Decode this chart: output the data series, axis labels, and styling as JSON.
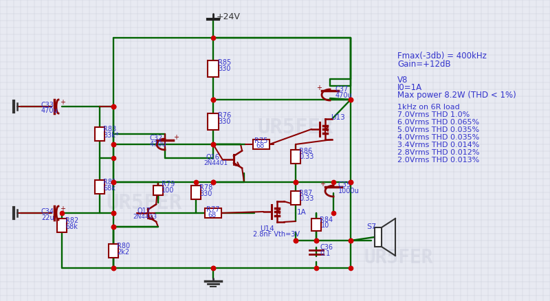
{
  "bg_color": "#e8eaf2",
  "grid_color": "#c8ccd8",
  "wire_color": "#006400",
  "comp_color": "#8b0000",
  "text_color": "#3333cc",
  "wm_color": "#c0c4d4",
  "info_lines": [
    [
      "Fmax(-3db) = 400kHz",
      578,
      75,
      8.5
    ],
    [
      "Gain=+12dB",
      578,
      87,
      8.5
    ],
    [
      "V8",
      578,
      110,
      8.5
    ],
    [
      "I0=1A",
      578,
      121,
      8.5
    ],
    [
      "Max power 8.2W (THD < 1%)",
      578,
      132,
      8.5
    ],
    [
      "1kHz on 6R load",
      578,
      151,
      8.0
    ],
    [
      "7.0Vrms THD 1.0%",
      578,
      162,
      8.0
    ],
    [
      "6.0Vrms THD 0.065%",
      578,
      173,
      8.0
    ],
    [
      "5.0Vrms THD 0.035%",
      578,
      184,
      8.0
    ],
    [
      "4.0Vrms THD 0.035%",
      578,
      195,
      8.0
    ],
    [
      "3.4Vrms THD 0.014%",
      578,
      206,
      8.0
    ],
    [
      "2.8Vrms THD 0.012%",
      578,
      217,
      8.0
    ],
    [
      "2.0Vrms THD 0.013%",
      578,
      228,
      8.0
    ]
  ]
}
